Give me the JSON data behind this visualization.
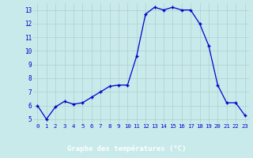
{
  "hours": [
    0,
    1,
    2,
    3,
    4,
    5,
    6,
    7,
    8,
    9,
    10,
    11,
    12,
    13,
    14,
    15,
    16,
    17,
    18,
    19,
    20,
    21,
    22,
    23
  ],
  "temperatures": [
    6.0,
    5.0,
    5.9,
    6.3,
    6.1,
    6.2,
    6.6,
    7.0,
    7.4,
    7.5,
    7.5,
    9.6,
    12.7,
    13.2,
    13.0,
    13.2,
    13.0,
    13.0,
    12.0,
    10.4,
    7.5,
    6.2,
    6.2,
    5.3
  ],
  "line_color": "#0000cc",
  "marker": "+",
  "bg_color": "#c8eaea",
  "grid_color": "#b0d0d0",
  "xlabel": "Graphe des températures (°C)",
  "xlabel_color": "#0000cc",
  "xlabel_bg": "#0000cc",
  "xlabel_text_color": "#ffffff",
  "tick_color": "#0000cc",
  "xlim_min": -0.5,
  "xlim_max": 23.5,
  "ylim_min": 4.7,
  "ylim_max": 13.5,
  "yticks": [
    5,
    6,
    7,
    8,
    9,
    10,
    11,
    12,
    13
  ],
  "xticks": [
    0,
    1,
    2,
    3,
    4,
    5,
    6,
    7,
    8,
    9,
    10,
    11,
    12,
    13,
    14,
    15,
    16,
    17,
    18,
    19,
    20,
    21,
    22,
    23
  ]
}
